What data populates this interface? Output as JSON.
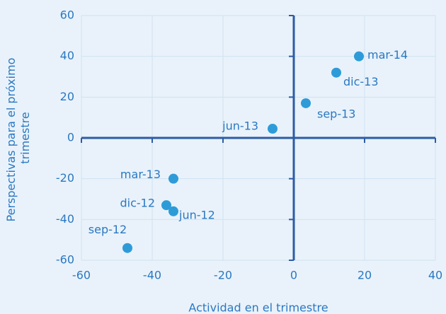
{
  "chart_data": {
    "type": "scatter",
    "xlabel": "Actividad en el trimestre",
    "ylabel": [
      "Perspectivas para el próximo",
      "trimestre"
    ],
    "x": [
      18.4,
      12,
      3.4,
      -6,
      -34,
      -36,
      -34,
      -47
    ],
    "values": [
      40,
      32,
      17,
      4.5,
      -20,
      -33,
      -36,
      -54
    ],
    "point_labels": [
      "mar-14",
      "dic-13",
      "sep-13",
      "jun-13",
      "mar-13",
      "dic-12",
      "jun-12",
      "sep-12"
    ],
    "color": "#2e9bd9",
    "xlim": [
      -60,
      40
    ],
    "xticks": [
      -60,
      -40,
      -20,
      0,
      20,
      40
    ],
    "ylim": [
      -60,
      60
    ],
    "yticks": [
      -60,
      -40,
      -20,
      0,
      20,
      40,
      60
    ],
    "grid": true
  }
}
